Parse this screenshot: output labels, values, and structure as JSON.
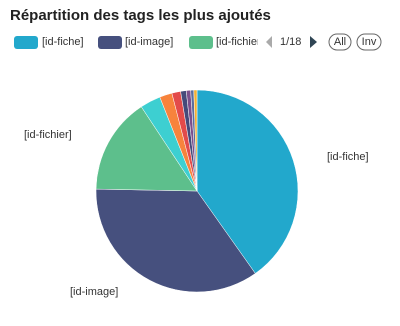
{
  "chart_data": {
    "type": "pie",
    "title": "Répartition des tags les plus ajoutés",
    "categories": [
      "[id-fiche]",
      "[id-image]",
      "[id-fichier]",
      null,
      null,
      null,
      null,
      null,
      null,
      null
    ],
    "values": [
      40.2,
      35.1,
      15.4,
      3.3,
      2.0,
      1.4,
      0.9,
      0.7,
      0.5,
      0.5
    ],
    "colors": [
      "#22a8cc",
      "#46507e",
      "#5dbf8c",
      "#3dcfd1",
      "#f7833c",
      "#e34b4a",
      "#454a7a",
      "#7b4f8c",
      "#5a6e9e",
      "#f2b134"
    ],
    "legend_page": "1/18",
    "legend_buttons": [
      "All",
      "Inv"
    ]
  }
}
